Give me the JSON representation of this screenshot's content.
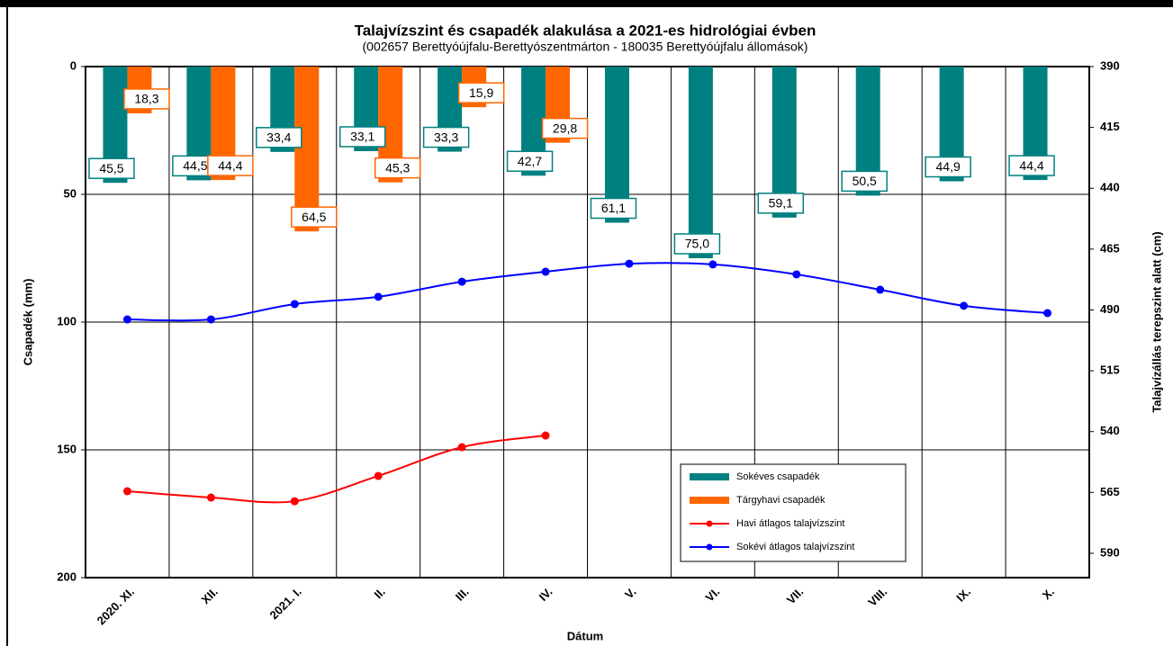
{
  "chart_data": {
    "type": "combo",
    "title": "Talajvízszint és csapadék alakulása a 2021-es hidrológiai évben",
    "subtitle": "(002657  Berettyóújfalu-Berettyószentmárton  - 180035  Berettyóújfalu állomások)",
    "x_label": "Dátum",
    "y_label": "Csapadék (mm)",
    "y2_label": "Talajvízállás terepszint alatt (cm)",
    "categories": [
      "2020. XI.",
      "XII.",
      "2021. I.",
      "II.",
      "III.",
      "IV.",
      "V.",
      "VI.",
      "VII.",
      "VIII.",
      "IX.",
      "X."
    ],
    "ylim": [
      0,
      200
    ],
    "yticks": [
      0,
      50,
      100,
      150,
      200
    ],
    "y_inverted": true,
    "y2lim": [
      390,
      600
    ],
    "y2ticks": [
      390,
      415,
      440,
      465,
      490,
      515,
      540,
      565,
      590
    ],
    "y2_inverted": true,
    "grid": true,
    "series": [
      {
        "name": "Sokéves csapadék",
        "type": "bar",
        "color": "#008080",
        "values": [
          45.5,
          44.5,
          33.4,
          33.1,
          33.3,
          42.7,
          61.1,
          75.0,
          59.1,
          50.5,
          44.9,
          44.4
        ],
        "value_labels": [
          "45,5",
          "44,5",
          "33,4",
          "33,1",
          "33,3",
          "42,7",
          "61,1",
          "75,0",
          "59,1",
          "50,5",
          "44,9",
          "44,4"
        ]
      },
      {
        "name": "Tárgyhavi csapadék",
        "type": "bar",
        "color": "#ff6600",
        "values": [
          18.3,
          44.4,
          64.5,
          45.3,
          15.9,
          29.8,
          null,
          null,
          null,
          null,
          null,
          null
        ],
        "value_labels": [
          "18,3",
          "44,4",
          "64,5",
          "45,3",
          "15,9",
          "29,8",
          null,
          null,
          null,
          null,
          null,
          null
        ]
      },
      {
        "name": "Havi átlagos talajvízszint",
        "type": "line",
        "axis": "y2",
        "color": "#ff0000",
        "values": [
          564.5,
          567.1,
          568.6,
          558.2,
          546.4,
          541.6,
          null,
          null,
          null,
          null,
          null,
          null
        ]
      },
      {
        "name": "Sokévi átlagos talajvízszint",
        "type": "line",
        "axis": "y2",
        "color": "#0000ff",
        "values": [
          493.9,
          493.9,
          487.6,
          484.6,
          478.4,
          474.3,
          471.0,
          471.3,
          475.4,
          481.7,
          488.3,
          491.3
        ]
      }
    ]
  }
}
